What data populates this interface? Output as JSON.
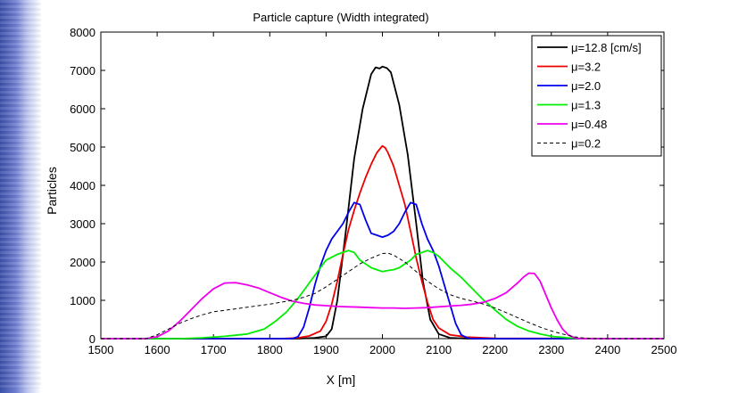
{
  "chart_data": {
    "type": "line",
    "title": "Particle capture (Width integrated)",
    "xlabel": "X [m]",
    "ylabel": "Particles",
    "xlim": [
      1500,
      2500
    ],
    "ylim": [
      0,
      8000
    ],
    "xticks": [
      1500,
      1600,
      1700,
      1800,
      1900,
      2000,
      2100,
      2200,
      2300,
      2400,
      2500
    ],
    "yticks": [
      0,
      1000,
      2000,
      3000,
      4000,
      5000,
      6000,
      7000,
      8000
    ],
    "grid": false,
    "legend_position": "top-right",
    "series": [
      {
        "name": "μ=12.8 [cm/s]",
        "color": "#000000",
        "dash": "solid",
        "points": [
          [
            1500,
            0
          ],
          [
            1850,
            0
          ],
          [
            1880,
            20
          ],
          [
            1900,
            60
          ],
          [
            1910,
            250
          ],
          [
            1920,
            1000
          ],
          [
            1935,
            2800
          ],
          [
            1950,
            4700
          ],
          [
            1965,
            6000
          ],
          [
            1980,
            6900
          ],
          [
            1988,
            7080
          ],
          [
            1995,
            7050
          ],
          [
            2000,
            7100
          ],
          [
            2008,
            7060
          ],
          [
            2015,
            6950
          ],
          [
            2030,
            6100
          ],
          [
            2045,
            4800
          ],
          [
            2060,
            3000
          ],
          [
            2072,
            1500
          ],
          [
            2085,
            500
          ],
          [
            2100,
            120
          ],
          [
            2120,
            20
          ],
          [
            2150,
            0
          ],
          [
            2500,
            0
          ]
        ]
      },
      {
        "name": "μ=3.2",
        "color": "#ee0000",
        "dash": "solid",
        "points": [
          [
            1500,
            0
          ],
          [
            1820,
            0
          ],
          [
            1850,
            20
          ],
          [
            1870,
            70
          ],
          [
            1890,
            200
          ],
          [
            1900,
            450
          ],
          [
            1910,
            900
          ],
          [
            1920,
            1500
          ],
          [
            1930,
            2200
          ],
          [
            1940,
            2850
          ],
          [
            1950,
            3350
          ],
          [
            1960,
            3800
          ],
          [
            1970,
            4200
          ],
          [
            1980,
            4550
          ],
          [
            1990,
            4850
          ],
          [
            2000,
            5030
          ],
          [
            2005,
            4980
          ],
          [
            2010,
            4850
          ],
          [
            2020,
            4500
          ],
          [
            2030,
            4000
          ],
          [
            2040,
            3500
          ],
          [
            2050,
            2800
          ],
          [
            2060,
            2100
          ],
          [
            2070,
            1500
          ],
          [
            2080,
            950
          ],
          [
            2090,
            500
          ],
          [
            2100,
            280
          ],
          [
            2120,
            100
          ],
          [
            2150,
            40
          ],
          [
            2200,
            10
          ],
          [
            2500,
            0
          ]
        ]
      },
      {
        "name": "μ=2.0",
        "color": "#0000ee",
        "dash": "solid",
        "points": [
          [
            1500,
            0
          ],
          [
            1840,
            0
          ],
          [
            1850,
            50
          ],
          [
            1860,
            300
          ],
          [
            1870,
            800
          ],
          [
            1880,
            1400
          ],
          [
            1890,
            1900
          ],
          [
            1900,
            2300
          ],
          [
            1910,
            2600
          ],
          [
            1920,
            2800
          ],
          [
            1930,
            3000
          ],
          [
            1940,
            3300
          ],
          [
            1950,
            3550
          ],
          [
            1960,
            3500
          ],
          [
            1970,
            3100
          ],
          [
            1980,
            2750
          ],
          [
            1990,
            2700
          ],
          [
            2000,
            2650
          ],
          [
            2010,
            2700
          ],
          [
            2020,
            2800
          ],
          [
            2030,
            3000
          ],
          [
            2040,
            3300
          ],
          [
            2050,
            3550
          ],
          [
            2060,
            3500
          ],
          [
            2070,
            3000
          ],
          [
            2080,
            2600
          ],
          [
            2090,
            2300
          ],
          [
            2100,
            1900
          ],
          [
            2110,
            1400
          ],
          [
            2120,
            900
          ],
          [
            2130,
            400
          ],
          [
            2140,
            100
          ],
          [
            2150,
            20
          ],
          [
            2160,
            0
          ],
          [
            2500,
            0
          ]
        ]
      },
      {
        "name": "μ=1.3",
        "color": "#00ee00",
        "dash": "solid",
        "points": [
          [
            1500,
            0
          ],
          [
            1640,
            0
          ],
          [
            1680,
            20
          ],
          [
            1720,
            60
          ],
          [
            1760,
            120
          ],
          [
            1790,
            250
          ],
          [
            1810,
            450
          ],
          [
            1830,
            700
          ],
          [
            1850,
            1050
          ],
          [
            1870,
            1450
          ],
          [
            1890,
            1850
          ],
          [
            1900,
            2050
          ],
          [
            1920,
            2200
          ],
          [
            1940,
            2300
          ],
          [
            1950,
            2250
          ],
          [
            1960,
            2050
          ],
          [
            1970,
            1950
          ],
          [
            1980,
            1850
          ],
          [
            1990,
            1800
          ],
          [
            2000,
            1750
          ],
          [
            2010,
            1780
          ],
          [
            2020,
            1800
          ],
          [
            2030,
            1850
          ],
          [
            2040,
            1950
          ],
          [
            2050,
            2050
          ],
          [
            2060,
            2200
          ],
          [
            2070,
            2250
          ],
          [
            2080,
            2300
          ],
          [
            2090,
            2250
          ],
          [
            2100,
            2150
          ],
          [
            2110,
            2000
          ],
          [
            2120,
            1850
          ],
          [
            2140,
            1600
          ],
          [
            2160,
            1300
          ],
          [
            2180,
            1000
          ],
          [
            2200,
            750
          ],
          [
            2220,
            500
          ],
          [
            2240,
            320
          ],
          [
            2260,
            200
          ],
          [
            2280,
            120
          ],
          [
            2300,
            60
          ],
          [
            2330,
            20
          ],
          [
            2350,
            0
          ],
          [
            2500,
            0
          ]
        ]
      },
      {
        "name": "μ=0.48",
        "color": "#ee00ee",
        "dash": "solid",
        "points": [
          [
            1500,
            0
          ],
          [
            1580,
            0
          ],
          [
            1600,
            50
          ],
          [
            1620,
            200
          ],
          [
            1640,
            450
          ],
          [
            1660,
            750
          ],
          [
            1680,
            1050
          ],
          [
            1700,
            1300
          ],
          [
            1720,
            1450
          ],
          [
            1740,
            1460
          ],
          [
            1760,
            1400
          ],
          [
            1780,
            1320
          ],
          [
            1800,
            1200
          ],
          [
            1820,
            1080
          ],
          [
            1840,
            980
          ],
          [
            1860,
            920
          ],
          [
            1880,
            880
          ],
          [
            1900,
            860
          ],
          [
            1920,
            840
          ],
          [
            1940,
            830
          ],
          [
            1960,
            820
          ],
          [
            1980,
            810
          ],
          [
            2000,
            800
          ],
          [
            2020,
            800
          ],
          [
            2040,
            790
          ],
          [
            2060,
            800
          ],
          [
            2080,
            810
          ],
          [
            2100,
            830
          ],
          [
            2120,
            850
          ],
          [
            2140,
            870
          ],
          [
            2160,
            900
          ],
          [
            2180,
            950
          ],
          [
            2200,
            1050
          ],
          [
            2220,
            1200
          ],
          [
            2240,
            1450
          ],
          [
            2250,
            1600
          ],
          [
            2260,
            1710
          ],
          [
            2270,
            1700
          ],
          [
            2280,
            1500
          ],
          [
            2290,
            1150
          ],
          [
            2300,
            800
          ],
          [
            2310,
            500
          ],
          [
            2320,
            250
          ],
          [
            2330,
            100
          ],
          [
            2340,
            30
          ],
          [
            2350,
            0
          ],
          [
            2500,
            0
          ]
        ]
      },
      {
        "name": "μ=0.2",
        "color": "#000000",
        "dash": "dashed",
        "points": [
          [
            1500,
            0
          ],
          [
            1580,
            0
          ],
          [
            1600,
            100
          ],
          [
            1620,
            250
          ],
          [
            1640,
            400
          ],
          [
            1660,
            520
          ],
          [
            1680,
            620
          ],
          [
            1700,
            700
          ],
          [
            1720,
            740
          ],
          [
            1740,
            780
          ],
          [
            1760,
            820
          ],
          [
            1780,
            860
          ],
          [
            1800,
            900
          ],
          [
            1820,
            950
          ],
          [
            1840,
            1000
          ],
          [
            1860,
            1080
          ],
          [
            1880,
            1180
          ],
          [
            1900,
            1350
          ],
          [
            1920,
            1550
          ],
          [
            1940,
            1750
          ],
          [
            1960,
            1950
          ],
          [
            1980,
            2100
          ],
          [
            2000,
            2220
          ],
          [
            2010,
            2230
          ],
          [
            2020,
            2180
          ],
          [
            2040,
            2000
          ],
          [
            2060,
            1750
          ],
          [
            2080,
            1500
          ],
          [
            2100,
            1300
          ],
          [
            2120,
            1150
          ],
          [
            2140,
            1050
          ],
          [
            2160,
            980
          ],
          [
            2180,
            900
          ],
          [
            2200,
            800
          ],
          [
            2220,
            680
          ],
          [
            2240,
            550
          ],
          [
            2260,
            420
          ],
          [
            2280,
            300
          ],
          [
            2300,
            200
          ],
          [
            2320,
            120
          ],
          [
            2340,
            50
          ],
          [
            2360,
            10
          ],
          [
            2380,
            0
          ],
          [
            2500,
            0
          ]
        ]
      }
    ]
  }
}
